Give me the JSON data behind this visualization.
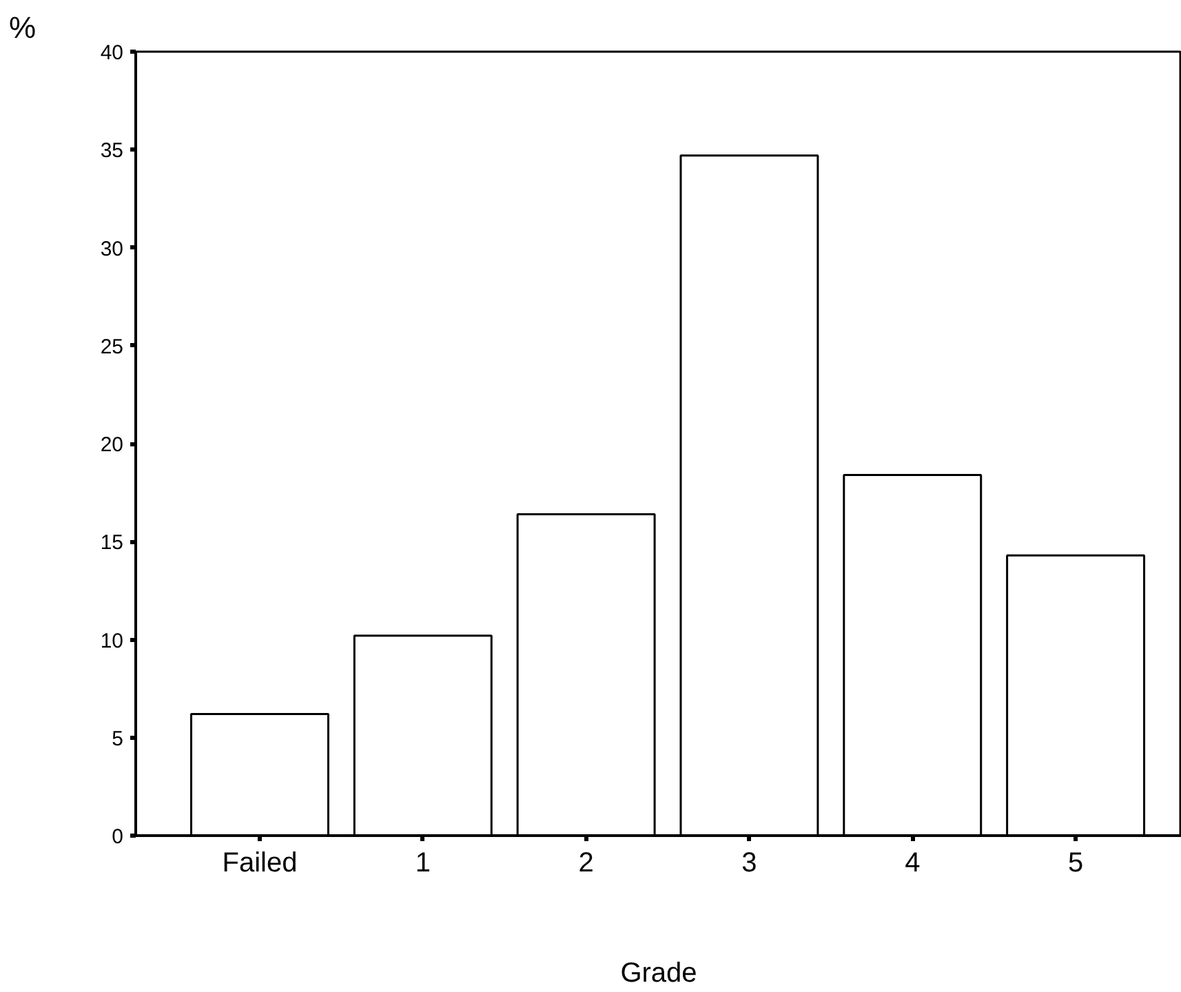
{
  "chart_data": {
    "type": "bar",
    "xlabel": "Grade",
    "ylabel": "%",
    "categories": [
      "Failed",
      "1",
      "2",
      "3",
      "4",
      "5"
    ],
    "values": [
      6.2,
      10.2,
      16.4,
      34.7,
      18.4,
      14.3
    ],
    "color": "#ffffff",
    "ylim": [
      0,
      40
    ],
    "yticks": [
      0,
      5,
      10,
      15,
      20,
      25,
      30,
      35,
      40
    ],
    "grid": false
  }
}
